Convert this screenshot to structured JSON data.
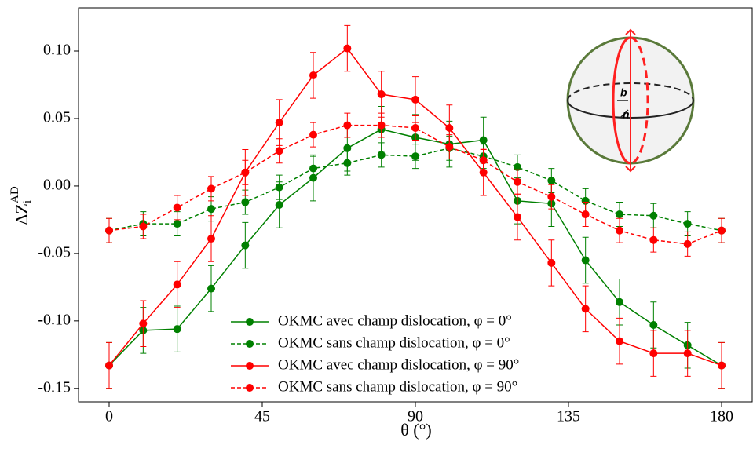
{
  "chart_data": {
    "type": "line",
    "xlabel": "θ (°)",
    "ylabel": {
      "main": "ΔZ",
      "sub": "i",
      "sup": "AD"
    },
    "x": [
      0,
      10,
      20,
      30,
      40,
      50,
      60,
      70,
      80,
      90,
      100,
      110,
      120,
      130,
      140,
      150,
      160,
      170,
      180
    ],
    "series": [
      {
        "name": "OKMC avec champ dislocation, φ = 0°",
        "color": "#008000",
        "dash": false,
        "values": [
          -0.133,
          -0.107,
          -0.106,
          -0.076,
          -0.044,
          -0.014,
          0.006,
          0.028,
          0.042,
          0.036,
          0.031,
          0.034,
          -0.011,
          -0.013,
          -0.055,
          -0.086,
          -0.103,
          -0.118,
          -0.133
        ],
        "errors": [
          0.017,
          0.017,
          0.017,
          0.017,
          0.017,
          0.017,
          0.017,
          0.017,
          0.017,
          0.017,
          0.017,
          0.017,
          0.017,
          0.017,
          0.017,
          0.017,
          0.017,
          0.017,
          0.017
        ]
      },
      {
        "name": "OKMC sans champ dislocation, φ = 0°",
        "color": "#008000",
        "dash": true,
        "values": [
          -0.033,
          -0.028,
          -0.028,
          -0.017,
          -0.012,
          -0.001,
          0.013,
          0.017,
          0.023,
          0.022,
          0.028,
          0.022,
          0.014,
          0.004,
          -0.011,
          -0.021,
          -0.022,
          -0.028,
          -0.033
        ],
        "errors": [
          0.009,
          0.009,
          0.009,
          0.009,
          0.009,
          0.009,
          0.009,
          0.009,
          0.009,
          0.009,
          0.009,
          0.009,
          0.009,
          0.009,
          0.009,
          0.009,
          0.009,
          0.009,
          0.009
        ]
      },
      {
        "name": "OKMC avec champ dislocation, φ = 90°",
        "color": "#ff0000",
        "dash": false,
        "values": [
          -0.133,
          -0.102,
          -0.073,
          -0.039,
          0.01,
          0.047,
          0.082,
          0.102,
          0.068,
          0.064,
          0.043,
          0.01,
          -0.023,
          -0.057,
          -0.091,
          -0.115,
          -0.124,
          -0.124,
          -0.133
        ],
        "errors": [
          0.017,
          0.017,
          0.017,
          0.017,
          0.017,
          0.017,
          0.017,
          0.017,
          0.017,
          0.017,
          0.017,
          0.017,
          0.017,
          0.017,
          0.017,
          0.017,
          0.017,
          0.017,
          0.017
        ]
      },
      {
        "name": "OKMC sans champ dislocation, φ = 90°",
        "color": "#ff0000",
        "dash": true,
        "values": [
          -0.033,
          -0.03,
          -0.016,
          -0.002,
          0.01,
          0.026,
          0.038,
          0.045,
          0.045,
          0.043,
          0.029,
          0.019,
          0.003,
          -0.008,
          -0.021,
          -0.033,
          -0.04,
          -0.043,
          -0.033
        ],
        "errors": [
          0.009,
          0.009,
          0.009,
          0.009,
          0.009,
          0.009,
          0.009,
          0.009,
          0.009,
          0.009,
          0.009,
          0.009,
          0.009,
          0.009,
          0.009,
          0.009,
          0.009,
          0.009,
          0.009
        ]
      }
    ],
    "xlim": [
      -9,
      189
    ],
    "ylim": [
      -0.16,
      0.132
    ],
    "xticks": [
      0,
      45,
      90,
      135,
      180
    ],
    "yticks": [
      {
        "value": 0.1,
        "label": "0.10"
      },
      0.05,
      {
        "value": 0,
        "label": "0.00"
      },
      -0.05,
      {
        "value": -0.1,
        "label": "-0.10"
      },
      -0.15
    ],
    "grid": false,
    "legend": "lower center",
    "annotations": [
      "b",
      "n"
    ]
  }
}
